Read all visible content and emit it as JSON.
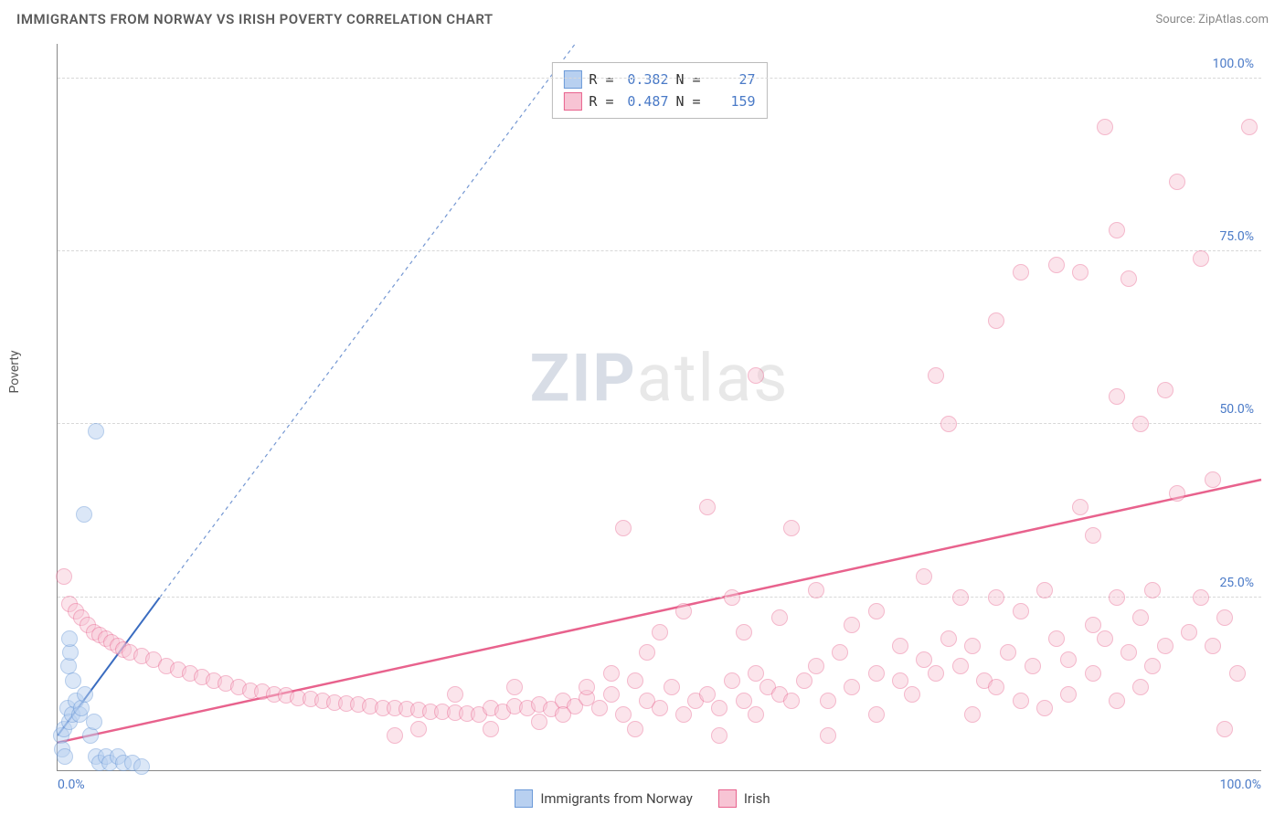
{
  "title": "IMMIGRANTS FROM NORWAY VS IRISH POVERTY CORRELATION CHART",
  "source": "Source: ZipAtlas.com",
  "ylabel": "Poverty",
  "watermark_bold": "ZIP",
  "watermark_rest": "atlas",
  "chart": {
    "type": "scatter",
    "xlim": [
      0,
      100
    ],
    "ylim": [
      0,
      105
    ],
    "xtick_labels": [
      "0.0%",
      "100.0%"
    ],
    "ytick_positions": [
      25,
      50,
      75,
      100
    ],
    "ytick_labels": [
      "25.0%",
      "50.0%",
      "75.0%",
      "100.0%"
    ],
    "background_color": "#ffffff",
    "grid_color": "#d8d8d8",
    "axis_color": "#888888",
    "tick_color": "#4a7ac7",
    "marker_radius": 9,
    "marker_stroke_width": 1.5,
    "series": [
      {
        "name": "Immigrants from Norway",
        "fill": "#b8d0f0",
        "stroke": "#6c9ad8",
        "fill_opacity": 0.5,
        "R": "0.382",
        "N": "27",
        "trend": {
          "x1": 0,
          "y1": 5,
          "x2": 8.5,
          "y2": 25,
          "dash_x2": 43,
          "dash_y2": 106,
          "color": "#3a6cc0",
          "width": 2
        },
        "points": [
          [
            0.3,
            5
          ],
          [
            0.5,
            6
          ],
          [
            0.8,
            9
          ],
          [
            1,
            7
          ],
          [
            1.2,
            8
          ],
          [
            1.5,
            10
          ],
          [
            0.4,
            3
          ],
          [
            0.6,
            2
          ],
          [
            1.8,
            8
          ],
          [
            2,
            9
          ],
          [
            2.3,
            11
          ],
          [
            0.9,
            15
          ],
          [
            1.1,
            17
          ],
          [
            2.7,
            5
          ],
          [
            3,
            7
          ],
          [
            3.2,
            2
          ],
          [
            3.5,
            1
          ],
          [
            4,
            2
          ],
          [
            4.3,
            1
          ],
          [
            5,
            2
          ],
          [
            5.5,
            1
          ],
          [
            6.2,
            1
          ],
          [
            7,
            0.5
          ],
          [
            2.2,
            37
          ],
          [
            3.2,
            49
          ],
          [
            1.3,
            13
          ],
          [
            1,
            19
          ]
        ]
      },
      {
        "name": "Irish",
        "fill": "#f7c4d4",
        "stroke": "#e8628d",
        "fill_opacity": 0.45,
        "R": "0.487",
        "N": "159",
        "trend": {
          "x1": 0,
          "y1": 4,
          "x2": 100,
          "y2": 42,
          "color": "#e8628d",
          "width": 2.5
        },
        "points": [
          [
            0.5,
            28
          ],
          [
            1,
            24
          ],
          [
            1.5,
            23
          ],
          [
            2,
            22
          ],
          [
            2.5,
            21
          ],
          [
            3,
            20
          ],
          [
            3.5,
            19.5
          ],
          [
            4,
            19
          ],
          [
            4.5,
            18.5
          ],
          [
            5,
            18
          ],
          [
            5.5,
            17.5
          ],
          [
            6,
            17
          ],
          [
            7,
            16.5
          ],
          [
            8,
            16
          ],
          [
            9,
            15
          ],
          [
            10,
            14.5
          ],
          [
            11,
            14
          ],
          [
            12,
            13.5
          ],
          [
            13,
            13
          ],
          [
            14,
            12.5
          ],
          [
            15,
            12
          ],
          [
            16,
            11.5
          ],
          [
            17,
            11.3
          ],
          [
            18,
            11
          ],
          [
            19,
            10.8
          ],
          [
            20,
            10.5
          ],
          [
            21,
            10.3
          ],
          [
            22,
            10
          ],
          [
            23,
            9.8
          ],
          [
            24,
            9.6
          ],
          [
            25,
            9.5
          ],
          [
            26,
            9.3
          ],
          [
            27,
            9
          ],
          [
            28,
            9
          ],
          [
            29,
            8.8
          ],
          [
            30,
            8.7
          ],
          [
            31,
            8.5
          ],
          [
            32,
            8.5
          ],
          [
            33,
            8.3
          ],
          [
            34,
            8.2
          ],
          [
            35,
            8
          ],
          [
            36,
            9
          ],
          [
            37,
            8.5
          ],
          [
            38,
            9.2
          ],
          [
            39,
            9
          ],
          [
            40,
            9.5
          ],
          [
            41,
            8.8
          ],
          [
            42,
            10
          ],
          [
            43,
            9.2
          ],
          [
            44,
            10.5
          ],
          [
            28,
            5
          ],
          [
            30,
            6
          ],
          [
            33,
            11
          ],
          [
            36,
            6
          ],
          [
            38,
            12
          ],
          [
            40,
            7
          ],
          [
            42,
            8
          ],
          [
            44,
            12
          ],
          [
            45,
            9
          ],
          [
            46,
            11
          ],
          [
            47,
            8
          ],
          [
            48,
            13
          ],
          [
            48,
            6
          ],
          [
            49,
            10
          ],
          [
            50,
            9
          ],
          [
            51,
            12
          ],
          [
            52,
            8
          ],
          [
            52,
            23
          ],
          [
            53,
            10
          ],
          [
            54,
            11
          ],
          [
            55,
            9
          ],
          [
            56,
            13
          ],
          [
            57,
            10
          ],
          [
            58,
            8
          ],
          [
            59,
            12
          ],
          [
            60,
            11
          ],
          [
            47,
            35
          ],
          [
            49,
            17
          ],
          [
            54,
            38
          ],
          [
            56,
            25
          ],
          [
            57,
            20
          ],
          [
            60,
            22
          ],
          [
            62,
            13
          ],
          [
            63,
            15
          ],
          [
            64,
            10
          ],
          [
            65,
            17
          ],
          [
            66,
            12
          ],
          [
            68,
            14
          ],
          [
            70,
            13
          ],
          [
            71,
            11
          ],
          [
            72,
            16
          ],
          [
            73,
            14
          ],
          [
            74,
            19
          ],
          [
            58,
            57
          ],
          [
            61,
            35
          ],
          [
            63,
            26
          ],
          [
            66,
            21
          ],
          [
            68,
            23
          ],
          [
            70,
            18
          ],
          [
            72,
            28
          ],
          [
            73,
            57
          ],
          [
            74,
            50
          ],
          [
            75,
            15
          ],
          [
            76,
            18
          ],
          [
            77,
            13
          ],
          [
            78,
            65
          ],
          [
            78,
            25
          ],
          [
            79,
            17
          ],
          [
            80,
            23
          ],
          [
            80,
            72
          ],
          [
            81,
            15
          ],
          [
            82,
            26
          ],
          [
            83,
            19
          ],
          [
            83,
            73
          ],
          [
            84,
            16
          ],
          [
            85,
            38
          ],
          [
            85,
            72
          ],
          [
            86,
            21
          ],
          [
            86,
            14
          ],
          [
            87,
            19
          ],
          [
            87,
            93
          ],
          [
            88,
            54
          ],
          [
            88,
            25
          ],
          [
            88,
            78
          ],
          [
            89,
            17
          ],
          [
            89,
            71
          ],
          [
            90,
            22
          ],
          [
            90,
            50
          ],
          [
            91,
            26
          ],
          [
            91,
            15
          ],
          [
            92,
            55
          ],
          [
            92,
            18
          ],
          [
            93,
            40
          ],
          [
            93,
            85
          ],
          [
            94,
            20
          ],
          [
            95,
            25
          ],
          [
            95,
            74
          ],
          [
            96,
            18
          ],
          [
            96,
            42
          ],
          [
            97,
            22
          ],
          [
            97,
            6
          ],
          [
            98,
            14
          ],
          [
            88,
            10
          ],
          [
            99,
            93
          ],
          [
            84,
            11
          ],
          [
            80,
            10
          ],
          [
            76,
            8
          ],
          [
            64,
            5
          ],
          [
            68,
            8
          ],
          [
            55,
            5
          ],
          [
            58,
            14
          ],
          [
            61,
            10
          ],
          [
            50,
            20
          ],
          [
            46,
            14
          ],
          [
            75,
            25
          ],
          [
            78,
            12
          ],
          [
            82,
            9
          ],
          [
            86,
            34
          ],
          [
            90,
            12
          ]
        ]
      }
    ]
  },
  "legend": {
    "items": [
      {
        "label": "Immigrants from Norway",
        "fill": "#b8d0f0",
        "stroke": "#6c9ad8"
      },
      {
        "label": "Irish",
        "fill": "#f7c4d4",
        "stroke": "#e8628d"
      }
    ]
  }
}
